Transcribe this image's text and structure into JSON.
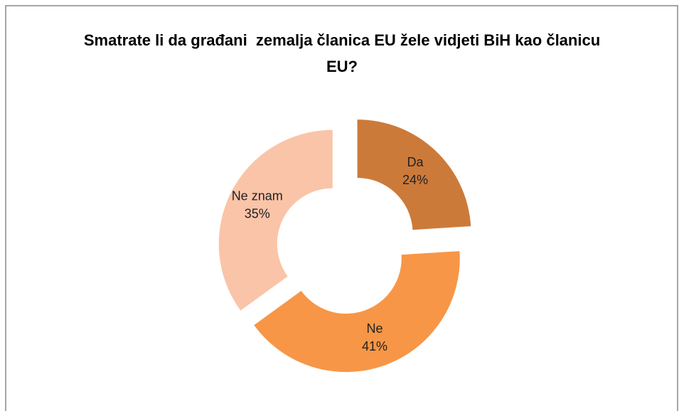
{
  "chart_data": {
    "type": "donut",
    "title": "Smatrate li da građani  zemalja članica EU žele vidjeti BiH kao članicu EU?",
    "categories": [
      "Da",
      "Ne",
      "Ne znam"
    ],
    "values": [
      24,
      41,
      35
    ],
    "value_labels": [
      "24%",
      "41%",
      "35%"
    ],
    "colors": [
      "#cc7a3a",
      "#f79646",
      "#fac4a8"
    ]
  }
}
